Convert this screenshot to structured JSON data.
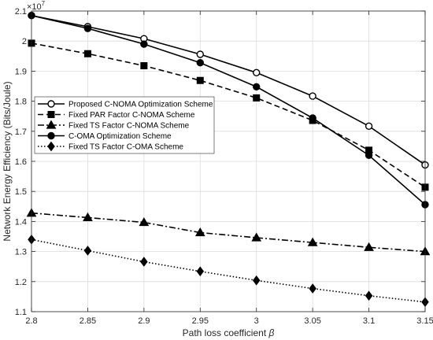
{
  "chart_data": {
    "type": "line",
    "xlabel_text": "Path loss coefficient ",
    "xlabel_symbol": "β",
    "ylabel": "Network Energy Efficiency (Bits/Joule)",
    "y_multiplier_base": "×10",
    "y_multiplier_exp": "7",
    "grid": true,
    "legend_position": "left-middle",
    "xlim": [
      2.8,
      3.15
    ],
    "ylim": [
      1.1,
      2.1
    ],
    "x": [
      2.8,
      2.85,
      2.9,
      2.95,
      3.0,
      3.05,
      3.1,
      3.15
    ],
    "x_tick_values": [
      2.8,
      2.85,
      2.9,
      2.95,
      3.0,
      3.05,
      3.1,
      3.15
    ],
    "x_tick_labels": [
      "2.8",
      "2.85",
      "2.9",
      "2.95",
      "3",
      "3.05",
      "3.1",
      "3.15"
    ],
    "y_tick_values": [
      1.1,
      1.2,
      1.3,
      1.4,
      1.5,
      1.6,
      1.7,
      1.8,
      1.9,
      2.0,
      2.1
    ],
    "y_tick_labels": [
      "1.1",
      "1.2",
      "1.3",
      "1.4",
      "1.5",
      "1.6",
      "1.7",
      "1.8",
      "1.9",
      "2",
      "2.1"
    ],
    "series": [
      {
        "name": "Proposed C-NOMA Optimization Scheme",
        "marker": "circle-open",
        "dash": "solid",
        "values": [
          2.085,
          2.048,
          2.008,
          1.956,
          1.895,
          1.817,
          1.717,
          1.588
        ]
      },
      {
        "name": "Fixed PAR Factor C-NOMA Scheme",
        "marker": "square",
        "dash": "dashed",
        "values": [
          1.993,
          1.958,
          1.918,
          1.869,
          1.811,
          1.736,
          1.637,
          1.514
        ]
      },
      {
        "name": "Fixed TS Factor C-NOMA Scheme",
        "marker": "triangle",
        "dash": "dashdot",
        "values": [
          1.428,
          1.413,
          1.397,
          1.363,
          1.346,
          1.33,
          1.314,
          1.3
        ]
      },
      {
        "name": "C-OMA Optimization Scheme",
        "marker": "circle-filled",
        "dash": "solid",
        "values": [
          2.085,
          2.042,
          1.99,
          1.928,
          1.848,
          1.744,
          1.62,
          1.456
        ]
      },
      {
        "name": "Fixed TS Factor C-OMA Scheme",
        "marker": "diamond",
        "dash": "dotted",
        "values": [
          1.34,
          1.303,
          1.266,
          1.234,
          1.204,
          1.177,
          1.153,
          1.132
        ]
      }
    ]
  }
}
